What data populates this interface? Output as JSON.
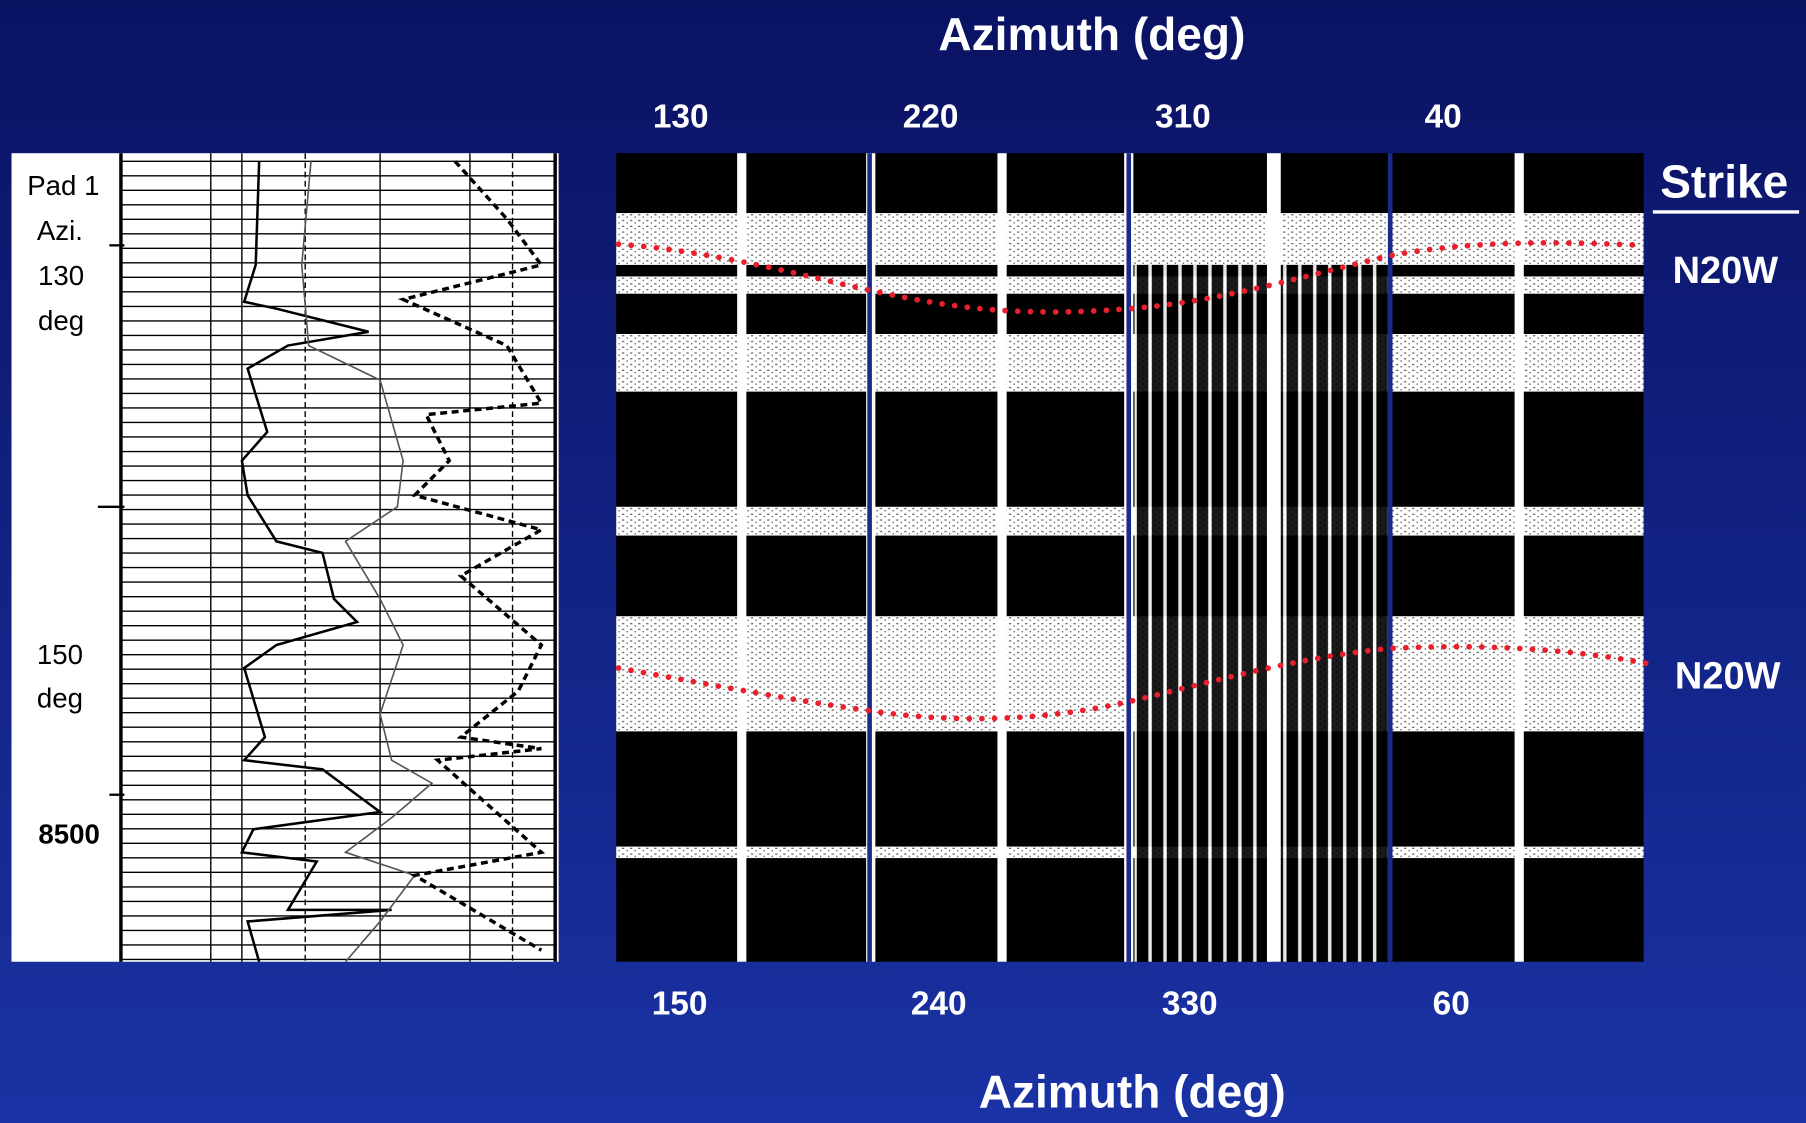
{
  "header": {
    "title": "Azimuth (deg)"
  },
  "top_azimuths": [
    "130",
    "220",
    "310",
    "40"
  ],
  "bottom_azimuths": [
    "150",
    "240",
    "330",
    "60"
  ],
  "footer": {
    "title": "Azimuth (deg)"
  },
  "strike": {
    "label": "Strike",
    "values": [
      "N20W",
      "N20W"
    ]
  },
  "log_labels": {
    "pad": "Pad 1",
    "azi": "Azi.",
    "azi1": "130",
    "unit1": "deg",
    "azi2": "150",
    "unit2": "deg",
    "depth": "8500"
  }
}
